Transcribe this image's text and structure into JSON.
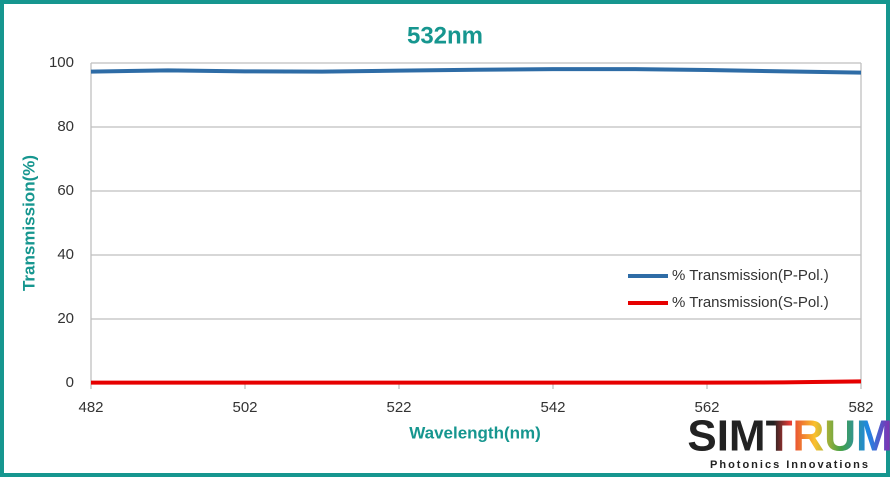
{
  "chart_data": {
    "type": "line",
    "title": "532nm",
    "xlabel": "Wavelength(nm)",
    "ylabel": "Transmission(%)",
    "x": [
      482,
      492,
      502,
      512,
      522,
      532,
      542,
      552,
      562,
      572,
      582
    ],
    "series": [
      {
        "name": "% Transmission(P-Pol.)",
        "color": "#2e6ca6",
        "values": [
          97.3,
          97.7,
          97.4,
          97.3,
          97.6,
          97.9,
          98.1,
          98.1,
          97.8,
          97.4,
          97.0
        ]
      },
      {
        "name": "% Transmission(S-Pol.)",
        "color": "#e60000",
        "values": [
          0.1,
          0.1,
          0.1,
          0.1,
          0.1,
          0.1,
          0.1,
          0.1,
          0.1,
          0.2,
          0.5
        ]
      }
    ],
    "xlim": [
      482,
      582
    ],
    "xticks": [
      482,
      502,
      522,
      542,
      562,
      582
    ],
    "ylim": [
      0,
      100
    ],
    "yticks": [
      0,
      20,
      40,
      60,
      80,
      100
    ],
    "grid": true,
    "legend": "right"
  },
  "logo": {
    "name": "SIMTRUM",
    "tagline": "Photonics Innovations"
  }
}
